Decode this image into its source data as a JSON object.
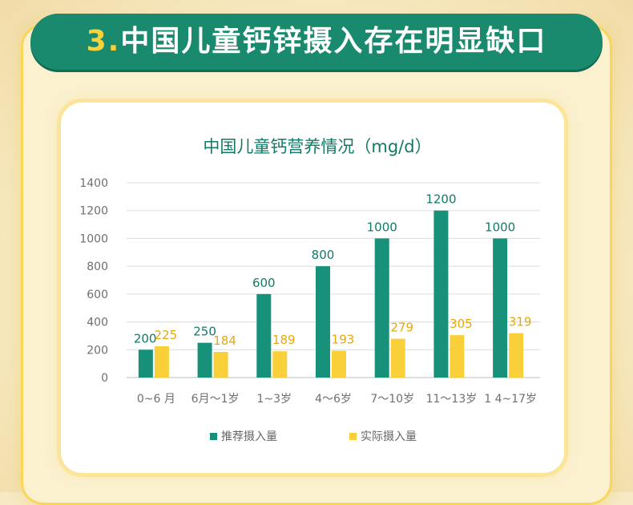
{
  "banner": {
    "number": "3.",
    "text": "中国儿童钙锌摄入存在明显缺口"
  },
  "chart_data": {
    "type": "bar",
    "title": "中国儿童钙营养情况（mg/d）",
    "categories": [
      "0~6 月",
      "6月～1岁",
      "1~3岁",
      "4～6岁",
      "7～10岁",
      "11～13岁",
      "1 4~17岁"
    ],
    "yticks": [
      "0",
      "200",
      "400",
      "600",
      "800",
      "1000",
      "1200",
      "1400"
    ],
    "ylim": [
      0,
      1400
    ],
    "grid": true,
    "legend_position": "bottom",
    "series": [
      {
        "name": "推荐摄入量",
        "color": "#17917a",
        "label_color": "#137a66",
        "values": [
          200,
          250,
          600,
          800,
          1000,
          1200,
          1000
        ],
        "labels": [
          "200",
          "250",
          "600",
          "800",
          "1000",
          "1200",
          "1000"
        ]
      },
      {
        "name": "实际摄入量",
        "color": "#f9cf3a",
        "label_color": "#e3a90e",
        "values": [
          225,
          184,
          189,
          193,
          279,
          305,
          319
        ],
        "labels": [
          "225",
          "184",
          "189",
          "193",
          "279",
          "305",
          "319"
        ]
      }
    ]
  }
}
